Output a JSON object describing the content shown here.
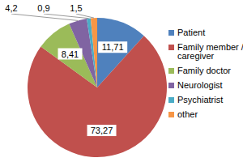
{
  "chart_data": {
    "type": "pie",
    "categories": [
      "Patient",
      "Family member / caregiver",
      "Family doctor",
      "Neurologist",
      "Psychiatrist",
      "other"
    ],
    "values": [
      11.71,
      73.27,
      8.41,
      4.2,
      0.9,
      1.5
    ],
    "value_labels": [
      "11,71",
      "73,27",
      "8,41",
      "4,2",
      "0,9",
      "1,5"
    ],
    "colors": [
      "#4f81bd",
      "#c0504d",
      "#9bbb59",
      "#8064a2",
      "#4bacc6",
      "#f79646"
    ],
    "data_labels": true,
    "legend": "right"
  }
}
